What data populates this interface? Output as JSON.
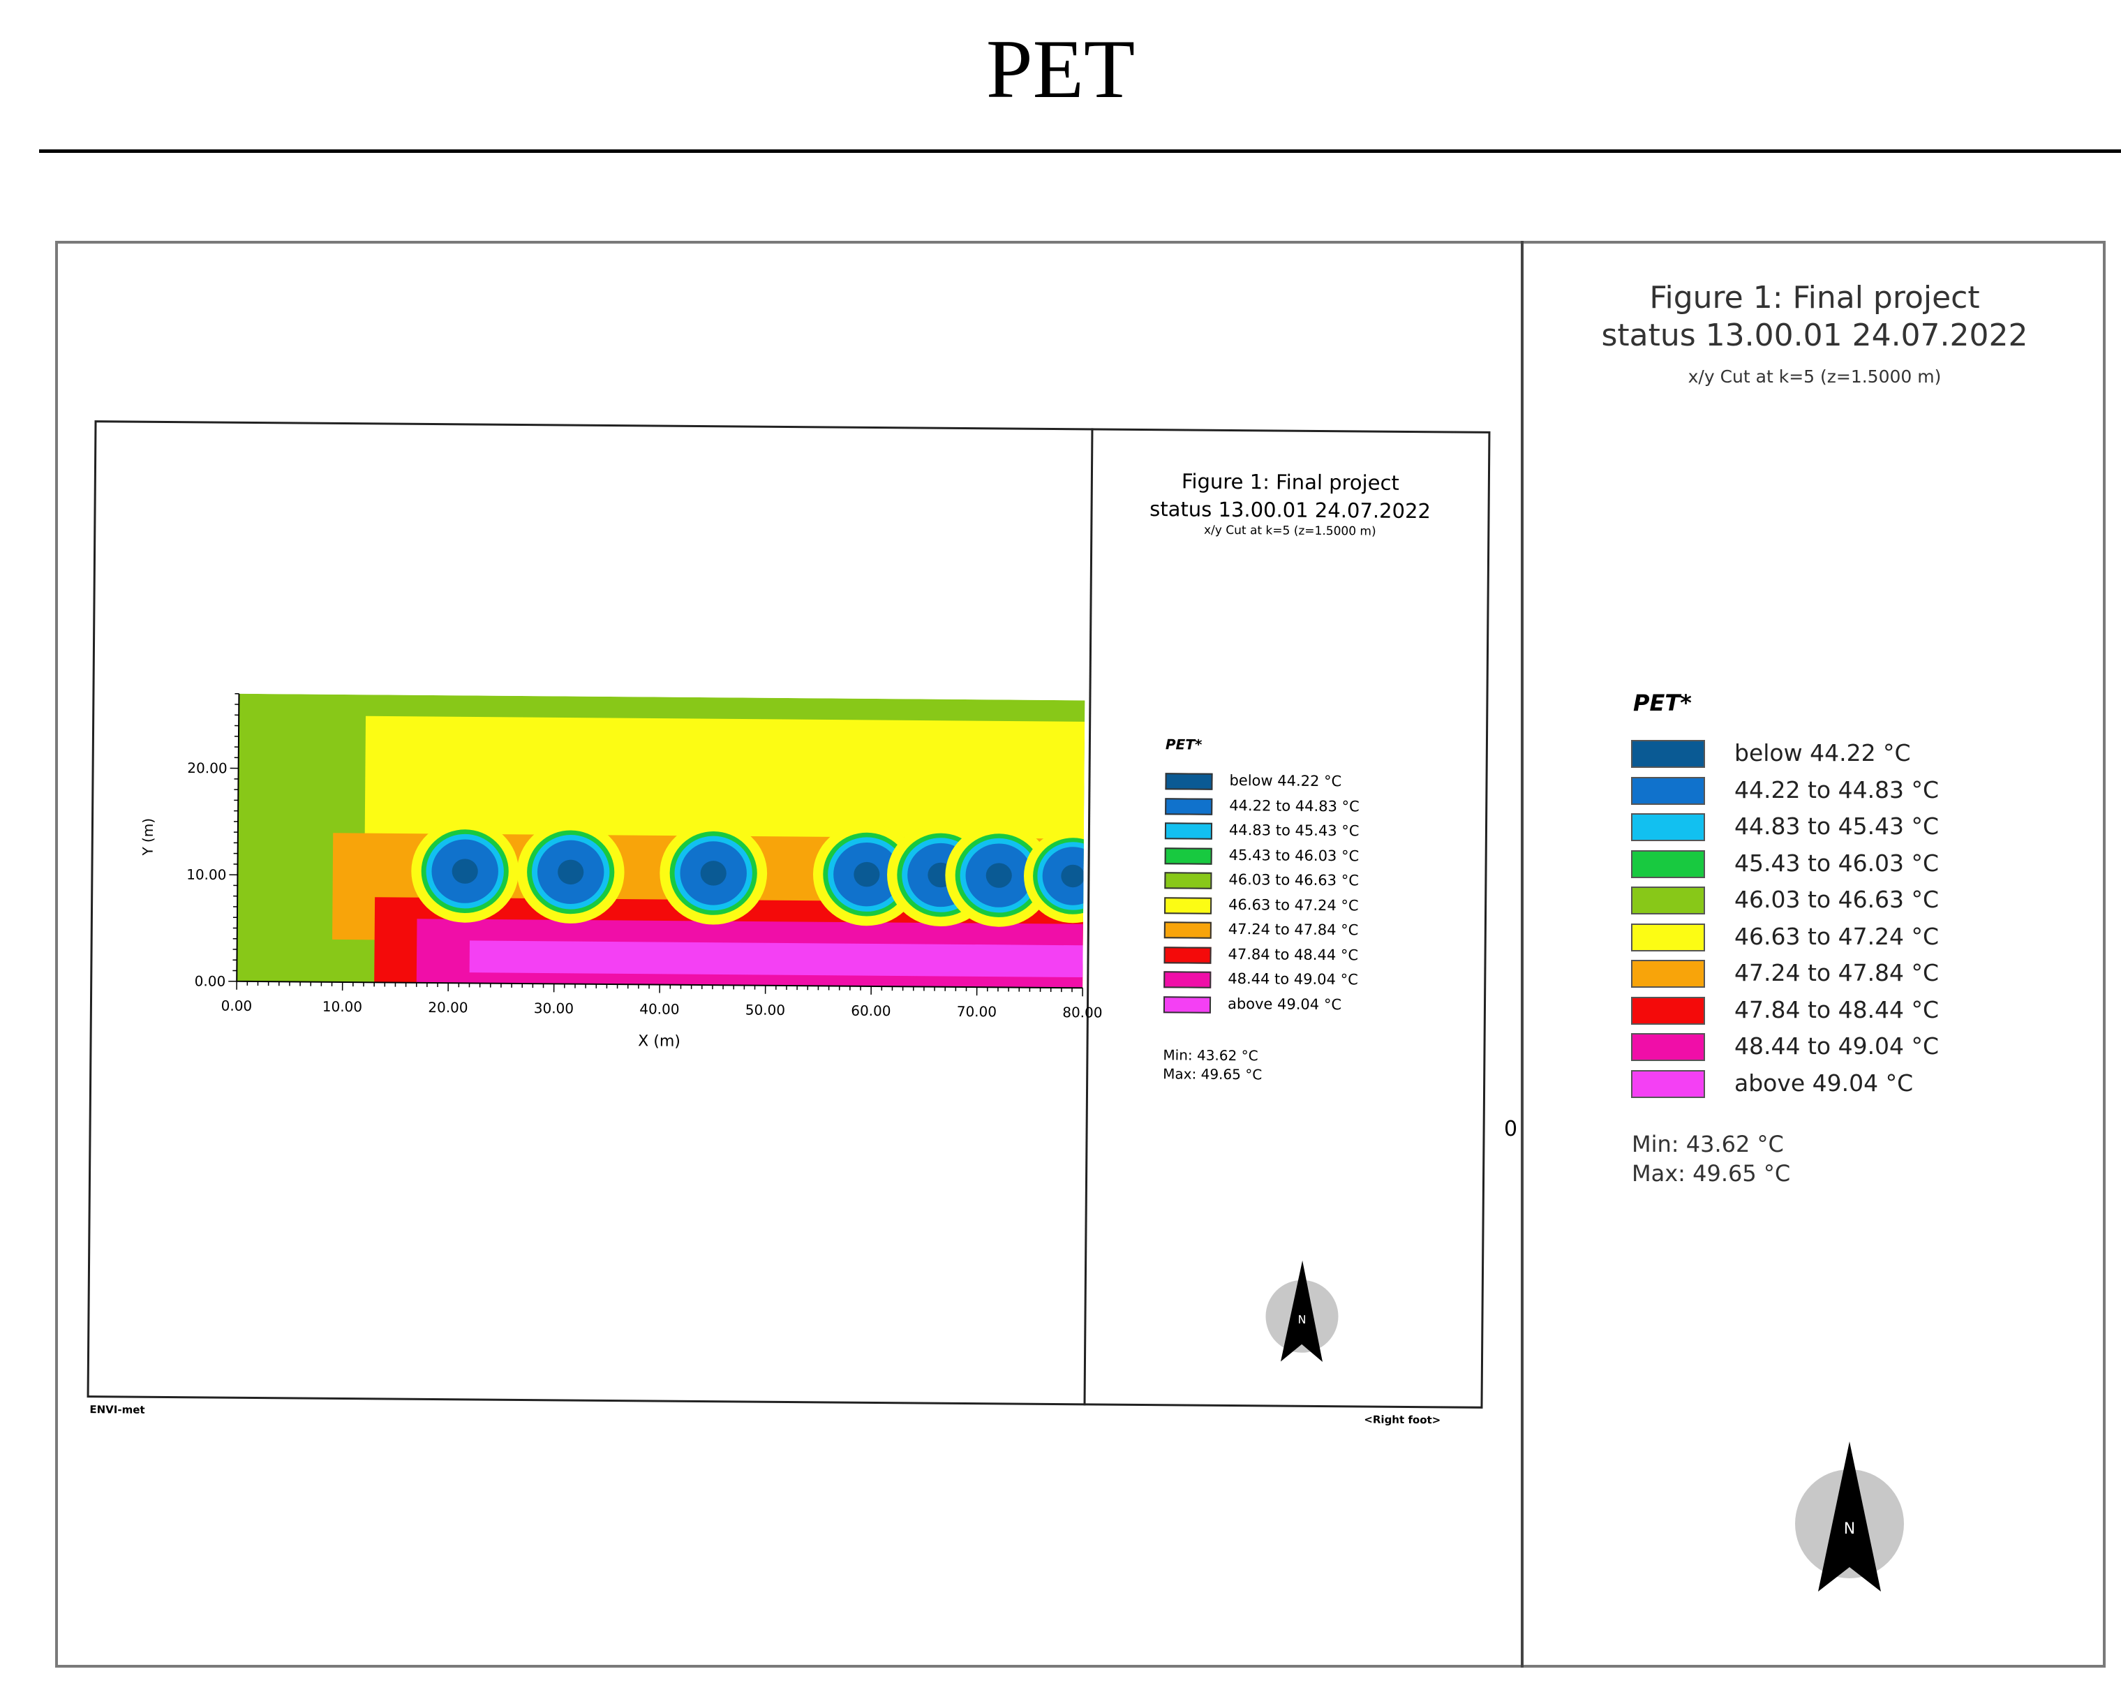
{
  "page": {
    "title": "PET",
    "stray_mark": "0"
  },
  "figure": {
    "title_line1": "Figure 1: Final project",
    "title_line2": "status 13.00.01 24.07.2022",
    "subtitle": "x/y Cut at k=5 (z=1.5000 m)",
    "legend_title": "PET*",
    "min_label": "Min: 43.62 °C",
    "max_label": "Max: 49.65 °C",
    "compass_letter": "N",
    "footer_left": "ENVI-met",
    "footer_right": "<Right foot>"
  },
  "legend": [
    {
      "label": "below 44.22 °C",
      "color": "#0a5a94"
    },
    {
      "label": "44.22 to 44.83 °C",
      "color": "#1072cc"
    },
    {
      "label": "44.83 to 45.43 °C",
      "color": "#12c0f0"
    },
    {
      "label": "45.43 to 46.03 °C",
      "color": "#18c940"
    },
    {
      "label": "46.03 to 46.63 °C",
      "color": "#88c818"
    },
    {
      "label": "46.63 to 47.24 °C",
      "color": "#fcfc14"
    },
    {
      "label": "47.24 to 47.84 °C",
      "color": "#f8a40a"
    },
    {
      "label": "47.84 to 48.44 °C",
      "color": "#f40a0a"
    },
    {
      "label": "48.44 to 49.04 °C",
      "color": "#f00ea8"
    },
    {
      "label": "above 49.04 °C",
      "color": "#f440f4"
    }
  ],
  "chart_data": {
    "type": "heatmap",
    "xlabel": "X (m)",
    "ylabel": "Y (m)",
    "xlim": [
      0,
      80
    ],
    "ylim": [
      0,
      27
    ],
    "x_ticks": [
      "0.00",
      "10.00",
      "20.00",
      "30.00",
      "40.00",
      "50.00",
      "60.00",
      "70.00",
      "80.00"
    ],
    "y_ticks": [
      "0.00",
      "10.00",
      "20.00"
    ],
    "variable": "PET",
    "min": 43.62,
    "max": 49.65,
    "bands": [
      {
        "class": "46.03 to 46.63 °C",
        "x_start": 0,
        "y_start": 0,
        "y_end": 27
      },
      {
        "class": "46.63 to 47.24 °C",
        "x_start": 12,
        "y_start": 11,
        "y_end": 25
      },
      {
        "class": "47.24 to 47.84 °C",
        "x_start": 9,
        "y_start": 4,
        "y_end": 14
      },
      {
        "class": "47.84 to 48.44 °C",
        "x_start": 13,
        "y_start": 0,
        "y_end": 8
      },
      {
        "class": "48.44 to 49.04 °C",
        "x_start": 17,
        "y_start": 0,
        "y_end": 6
      },
      {
        "class": "above 49.04 °C",
        "x_start": 22,
        "y_start": 1,
        "y_end": 4
      }
    ],
    "trees": [
      {
        "x": 21.5,
        "y": 10.5,
        "r": 3.5
      },
      {
        "x": 31.5,
        "y": 10.5,
        "r": 3.5
      },
      {
        "x": 45.0,
        "y": 10.5,
        "r": 3.5
      },
      {
        "x": 59.5,
        "y": 10.5,
        "r": 3.5
      },
      {
        "x": 66.5,
        "y": 10.5,
        "r": 3.5
      },
      {
        "x": 72.0,
        "y": 10.5,
        "r": 3.5
      },
      {
        "x": 79.0,
        "y": 10.5,
        "r": 3.2
      }
    ]
  }
}
